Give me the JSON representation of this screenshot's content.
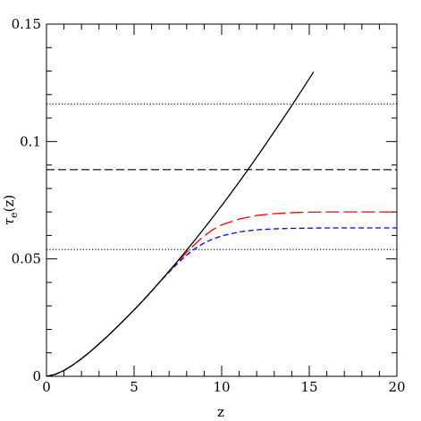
{
  "chart_data": {
    "type": "line",
    "xlabel": "z",
    "ylabel_symbol": "τ",
    "ylabel_subscript": "e",
    "ylabel_suffix": "(z)",
    "xlim": [
      0,
      20
    ],
    "ylim": [
      0,
      0.15
    ],
    "x_major_ticks": [
      0,
      5,
      10,
      15,
      20
    ],
    "x_tick_labels": [
      "0",
      "5",
      "10",
      "15",
      "20"
    ],
    "x_minor_step": 1,
    "y_major_ticks": [
      0,
      0.05,
      0.1,
      0.15
    ],
    "y_tick_labels": [
      "0",
      "0.05",
      "0.1",
      "0.15"
    ],
    "y_minor_step": 0.01,
    "grid": false,
    "series": [
      {
        "style": "solid",
        "color": "#000000",
        "x": [
          0,
          0.5,
          1,
          1.5,
          2,
          2.5,
          3,
          3.5,
          4,
          4.5,
          5,
          5.5,
          6,
          6.5,
          7,
          7.5,
          8,
          8.5,
          9,
          9.5,
          10,
          10.5,
          11,
          11.5,
          12,
          12.5,
          13,
          13.5,
          14,
          14.5,
          15,
          15.25
        ],
        "y": [
          0,
          0.0008,
          0.0025,
          0.0048,
          0.0075,
          0.0105,
          0.0138,
          0.0172,
          0.0208,
          0.0245,
          0.0283,
          0.0322,
          0.0363,
          0.0405,
          0.0448,
          0.0492,
          0.0537,
          0.0583,
          0.063,
          0.0678,
          0.0727,
          0.0777,
          0.0828,
          0.088,
          0.0933,
          0.0987,
          0.1042,
          0.1097,
          0.1153,
          0.121,
          0.1268,
          0.1297
        ]
      },
      {
        "style": "long-dash",
        "color": "#ff0000",
        "x": [
          0,
          0.5,
          1,
          1.5,
          2,
          2.5,
          3,
          3.5,
          4,
          4.5,
          5,
          5.5,
          6,
          6.5,
          7,
          7.5,
          8,
          8.5,
          9,
          9.5,
          10,
          11,
          12,
          13,
          14,
          15,
          16,
          17,
          18,
          19,
          20
        ],
        "y": [
          0,
          0.0008,
          0.0025,
          0.0048,
          0.0075,
          0.0105,
          0.0138,
          0.0172,
          0.0208,
          0.0245,
          0.0283,
          0.0322,
          0.0363,
          0.0405,
          0.0446,
          0.0487,
          0.0528,
          0.0565,
          0.0598,
          0.0625,
          0.0645,
          0.067,
          0.0685,
          0.0693,
          0.0697,
          0.0699,
          0.07,
          0.07,
          0.07,
          0.07,
          0.07
        ]
      },
      {
        "style": "short-dash",
        "color": "#0000ff",
        "x": [
          0,
          0.5,
          1,
          1.5,
          2,
          2.5,
          3,
          3.5,
          4,
          4.5,
          5,
          5.5,
          6,
          6.5,
          7,
          7.5,
          8,
          8.5,
          9,
          9.5,
          10,
          11,
          12,
          13,
          14,
          15,
          16,
          17,
          18,
          19,
          20
        ],
        "y": [
          0,
          0.0008,
          0.0025,
          0.0048,
          0.0075,
          0.0105,
          0.0138,
          0.0172,
          0.0208,
          0.0245,
          0.0283,
          0.0322,
          0.0363,
          0.0405,
          0.0444,
          0.0482,
          0.0516,
          0.0545,
          0.0568,
          0.0585,
          0.0598,
          0.0615,
          0.0624,
          0.0628,
          0.063,
          0.0631,
          0.0632,
          0.0632,
          0.0632,
          0.0632,
          0.0632
        ]
      }
    ],
    "hlines": [
      {
        "y": 0.116,
        "style": "dotted",
        "color": "#000000"
      },
      {
        "y": 0.088,
        "style": "dashed",
        "color": "#000000"
      },
      {
        "y": 0.054,
        "style": "dotted",
        "color": "#000000"
      }
    ]
  }
}
